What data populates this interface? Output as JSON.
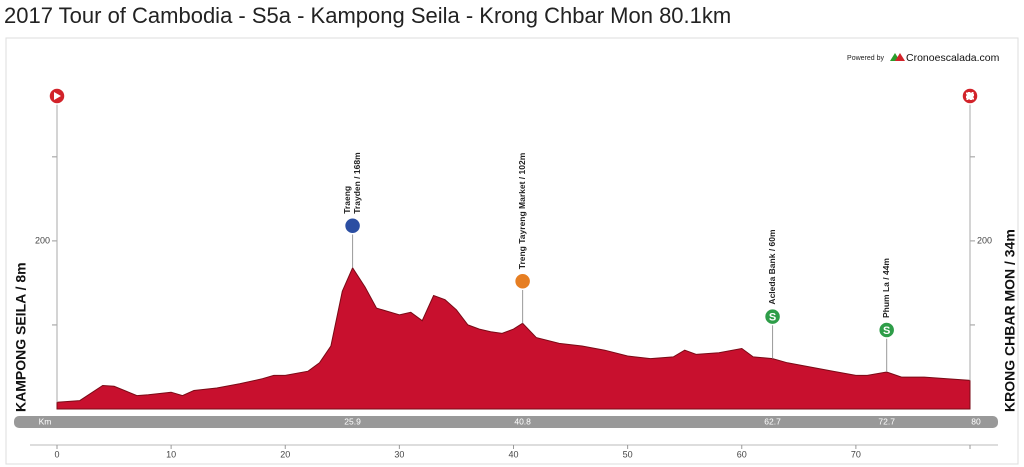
{
  "chart_data": {
    "type": "area",
    "title": "2017 Tour of Cambodia - S5a - Kampong Seila - Krong Chbar Mon 80.1km",
    "powered_by": "Powered by",
    "brand": "Cronoescalada.com",
    "start_label": "KAMPONG SEILA / 8m",
    "finish_label": "KRONG CHBAR MON / 34m",
    "km_label": "Km",
    "color": "#c8102e",
    "x": [
      0,
      2,
      4,
      5,
      7,
      8,
      10,
      11,
      12,
      14,
      16,
      18,
      19,
      20,
      22,
      23,
      24,
      25,
      25.9,
      27,
      28,
      30,
      31,
      32,
      33,
      34,
      35,
      36,
      37,
      38,
      39,
      40,
      40.8,
      42,
      44,
      46,
      48,
      50,
      52,
      54,
      55,
      56,
      58,
      60,
      61,
      62.7,
      64,
      66,
      68,
      70,
      71,
      72.7,
      74,
      76,
      78,
      80
    ],
    "values": [
      8,
      10,
      28,
      27,
      16,
      17,
      20,
      16,
      22,
      25,
      30,
      36,
      40,
      40,
      45,
      55,
      75,
      140,
      168,
      145,
      120,
      112,
      115,
      105,
      135,
      130,
      118,
      100,
      95,
      92,
      90,
      95,
      102,
      85,
      78,
      75,
      70,
      63,
      60,
      62,
      70,
      65,
      67,
      72,
      62,
      60,
      55,
      50,
      45,
      40,
      40,
      44,
      38,
      38,
      36,
      34
    ],
    "xlim": [
      0,
      80
    ],
    "xticks": [
      0,
      10,
      20,
      30,
      40,
      50,
      60,
      70
    ],
    "ylim": [
      0,
      370
    ],
    "yticks": [
      200
    ],
    "minor_yticks": [
      100,
      300
    ],
    "markers": [
      {
        "x": 25.9,
        "label": [
          "Traeng",
          "Trayden / 168m"
        ],
        "icon": "kom"
      },
      {
        "x": 40.8,
        "label": [
          "Treng Tayreng Market / 102m"
        ],
        "icon": "climb"
      },
      {
        "x": 62.7,
        "label": [
          "Acleda Bank / 60m"
        ],
        "icon": "sprint",
        "icon_text": "S"
      },
      {
        "x": 72.7,
        "label": [
          "Phum La / 44m"
        ],
        "icon": "sprint",
        "icon_text": "S"
      }
    ]
  }
}
